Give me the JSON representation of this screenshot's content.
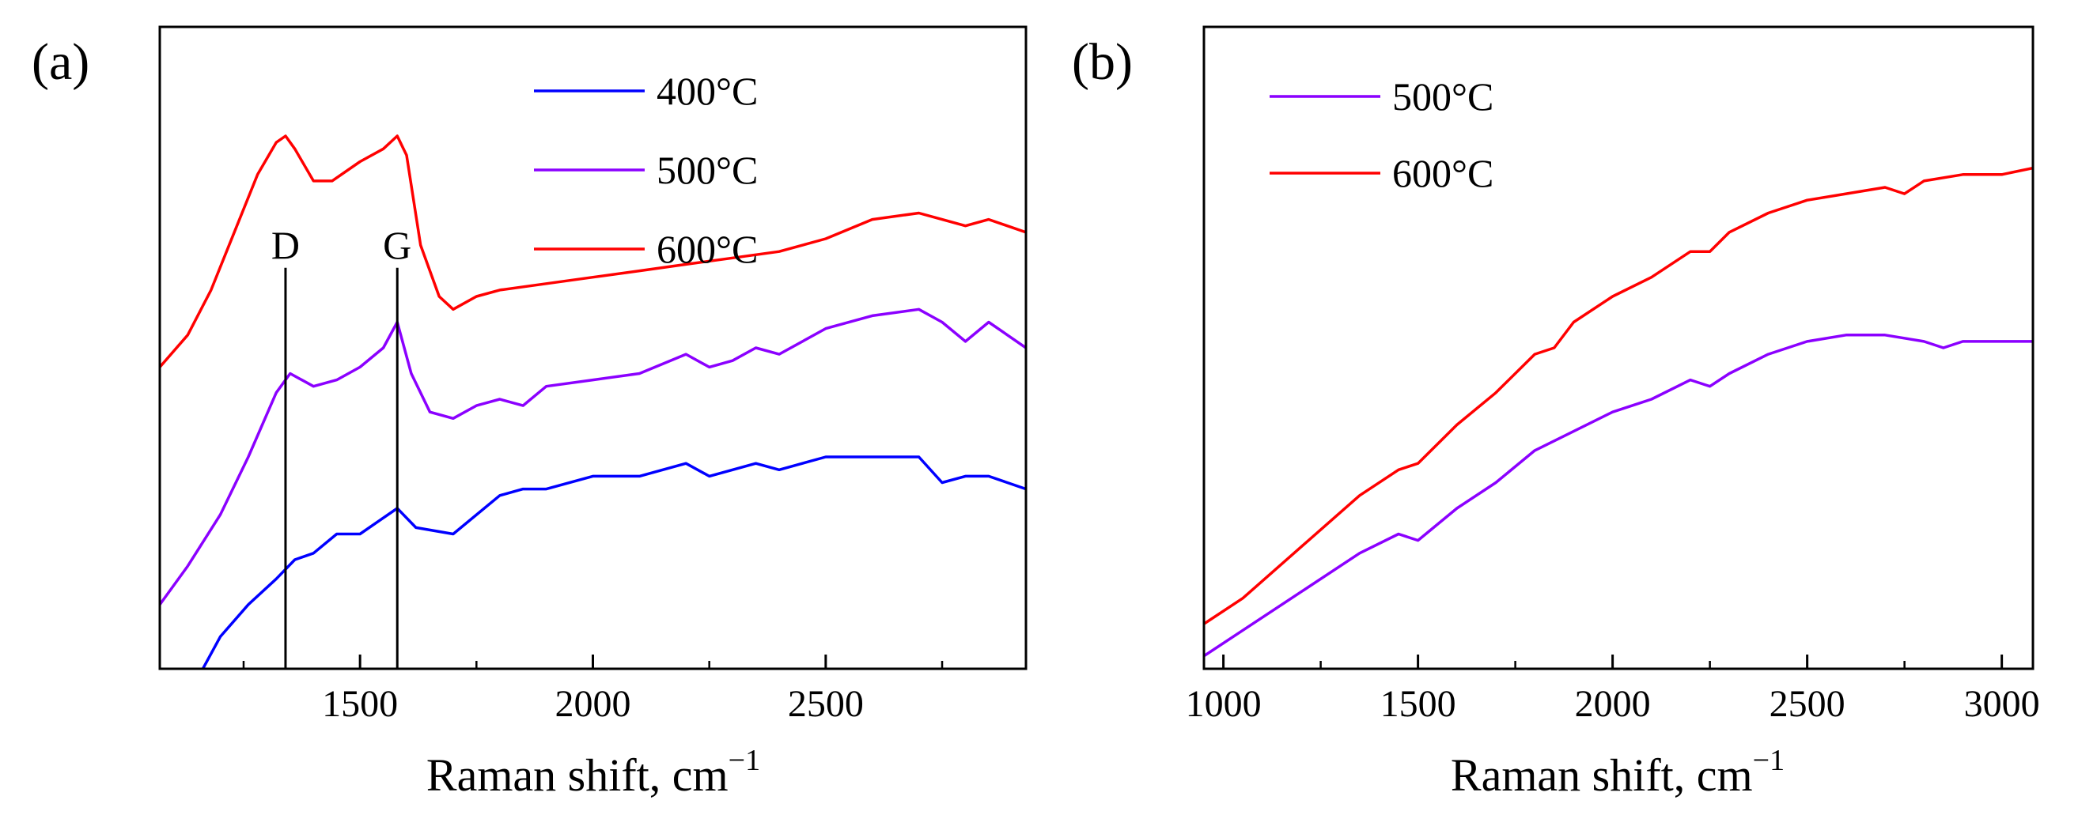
{
  "figure": {
    "background": "#ffffff",
    "axis_color": "#000000"
  },
  "chart_data": [
    {
      "panel_label": "(a)",
      "type": "line",
      "title": "",
      "xlabel": "Raman shift, cm",
      "xlabel_sup": "−1",
      "ylabel": "",
      "xlim": [
        1070,
        2930
      ],
      "ylim": [
        0,
        100
      ],
      "xticks": [
        1500,
        2000,
        2500
      ],
      "xtick_labels": [
        "1500",
        "2000",
        "2500"
      ],
      "xminor": [
        1250,
        1750,
        2250,
        2750
      ],
      "yticks_shown": false,
      "legend_position": "top-right",
      "annotations": [
        {
          "label": "D",
          "x": 1340,
          "from_y": 0,
          "to_y": 60
        },
        {
          "label": "G",
          "x": 1580,
          "from_y": 0,
          "to_y": 60
        }
      ],
      "series": [
        {
          "name": "400°C",
          "color": "#0000ff",
          "x": [
            1140,
            1200,
            1260,
            1320,
            1360,
            1400,
            1450,
            1500,
            1540,
            1580,
            1620,
            1700,
            1800,
            1850,
            1900,
            2000,
            2100,
            2200,
            2250,
            2300,
            2350,
            2400,
            2500,
            2600,
            2700,
            2750,
            2800,
            2850,
            2930
          ],
          "values": [
            -3,
            5,
            10,
            14,
            17,
            18,
            21,
            21,
            23,
            25,
            22,
            21,
            27,
            28,
            28,
            30,
            30,
            32,
            30,
            31,
            32,
            31,
            33,
            33,
            33,
            29,
            30,
            30,
            28
          ]
        },
        {
          "name": "500°C",
          "color": "#8b00ff",
          "x": [
            1070,
            1130,
            1200,
            1260,
            1320,
            1350,
            1400,
            1450,
            1500,
            1550,
            1580,
            1610,
            1650,
            1700,
            1750,
            1800,
            1850,
            1900,
            2000,
            2100,
            2200,
            2250,
            2300,
            2350,
            2400,
            2500,
            2600,
            2700,
            2750,
            2800,
            2850,
            2930
          ],
          "values": [
            10,
            16,
            24,
            33,
            43,
            46,
            44,
            45,
            47,
            50,
            54,
            46,
            40,
            39,
            41,
            42,
            41,
            44,
            45,
            46,
            49,
            47,
            48,
            50,
            49,
            53,
            55,
            56,
            54,
            51,
            54,
            50
          ]
        },
        {
          "name": "600°C",
          "color": "#ff0000",
          "x": [
            1070,
            1130,
            1180,
            1230,
            1280,
            1320,
            1340,
            1360,
            1400,
            1440,
            1500,
            1550,
            1580,
            1600,
            1630,
            1670,
            1700,
            1750,
            1800,
            1900,
            2000,
            2100,
            2200,
            2300,
            2400,
            2500,
            2600,
            2700,
            2750,
            2800,
            2850,
            2930
          ],
          "values": [
            47,
            52,
            59,
            68,
            77,
            82,
            83,
            81,
            76,
            76,
            79,
            81,
            83,
            80,
            66,
            58,
            56,
            58,
            59,
            60,
            61,
            62,
            63,
            64,
            65,
            67,
            70,
            71,
            70,
            69,
            70,
            68
          ]
        }
      ]
    },
    {
      "panel_label": "(b)",
      "type": "line",
      "title": "",
      "xlabel": "Raman shift, cm",
      "xlabel_sup": "−1",
      "ylabel": "",
      "xlim": [
        950,
        3080
      ],
      "ylim": [
        0,
        100
      ],
      "xticks": [
        1000,
        1500,
        2000,
        2500,
        3000
      ],
      "xtick_labels": [
        "1000",
        "1500",
        "2000",
        "2500",
        "3000"
      ],
      "xminor": [
        1250,
        1750,
        2250,
        2750
      ],
      "yticks_shown": false,
      "legend_position": "top-left",
      "series": [
        {
          "name": "500°C",
          "color": "#8b00ff",
          "x": [
            950,
            1050,
            1200,
            1350,
            1450,
            1500,
            1600,
            1700,
            1800,
            1900,
            2000,
            2100,
            2200,
            2250,
            2300,
            2400,
            2500,
            2600,
            2700,
            2800,
            2850,
            2900,
            3000,
            3080
          ],
          "values": [
            2,
            6,
            12,
            18,
            21,
            20,
            25,
            29,
            34,
            37,
            40,
            42,
            45,
            44,
            46,
            49,
            51,
            52,
            52,
            51,
            50,
            51,
            51,
            51
          ]
        },
        {
          "name": "600°C",
          "color": "#ff0000",
          "x": [
            950,
            1050,
            1200,
            1350,
            1450,
            1500,
            1600,
            1700,
            1800,
            1850,
            1900,
            2000,
            2100,
            2200,
            2250,
            2300,
            2400,
            2500,
            2600,
            2700,
            2750,
            2800,
            2900,
            3000,
            3080
          ],
          "values": [
            7,
            11,
            19,
            27,
            31,
            32,
            38,
            43,
            49,
            50,
            54,
            58,
            61,
            65,
            65,
            68,
            71,
            73,
            74,
            75,
            74,
            76,
            77,
            77,
            78
          ]
        }
      ]
    }
  ]
}
